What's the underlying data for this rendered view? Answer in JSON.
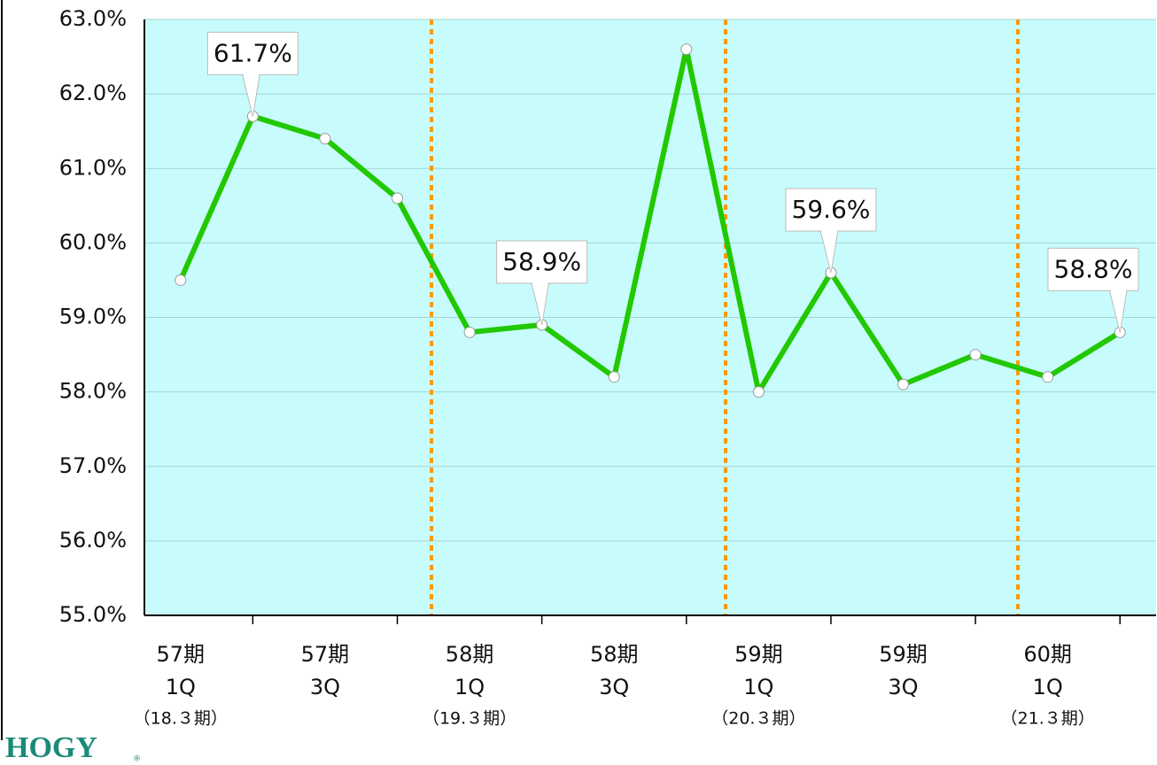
{
  "logo": "HOGY",
  "chart_data": {
    "type": "line",
    "categories": [
      [
        "57期",
        "1Q",
        "（18.３期）"
      ],
      null,
      [
        "57期",
        "3Q"
      ],
      null,
      [
        "58期",
        "1Q",
        "（19.３期）"
      ],
      null,
      [
        "58期",
        "3Q"
      ],
      null,
      [
        "59期",
        "1Q",
        "（20.３期）"
      ],
      null,
      [
        "59期",
        "3Q"
      ],
      null,
      [
        "60期",
        "1Q",
        "（21.３期）"
      ],
      null
    ],
    "series": [
      {
        "color": "#22c800",
        "values": [
          59.5,
          61.7,
          61.4,
          60.6,
          58.8,
          58.9,
          58.2,
          62.6,
          58.0,
          59.6,
          58.1,
          58.5,
          58.2,
          58.8
        ],
        "value_labels": [
          null,
          "61.7%",
          null,
          null,
          null,
          "58.9%",
          null,
          null,
          null,
          "59.6%",
          null,
          null,
          null,
          "58.8%"
        ]
      }
    ],
    "ylim": [
      55,
      63
    ],
    "yticks": [
      {
        "value": 55,
        "label": "55.0%"
      },
      {
        "value": 56,
        "label": "56.0%"
      },
      {
        "value": 57,
        "label": "57.0%"
      },
      {
        "value": 58,
        "label": "58.0%"
      },
      {
        "value": 59,
        "label": "59.0%"
      },
      {
        "value": 60,
        "label": "60.0%"
      },
      {
        "value": 61,
        "label": "61.0%"
      },
      {
        "value": 62,
        "label": "62.0%"
      },
      {
        "value": 63,
        "label": "63.0%"
      }
    ],
    "grid": true,
    "background": "#c8fcfc"
  }
}
